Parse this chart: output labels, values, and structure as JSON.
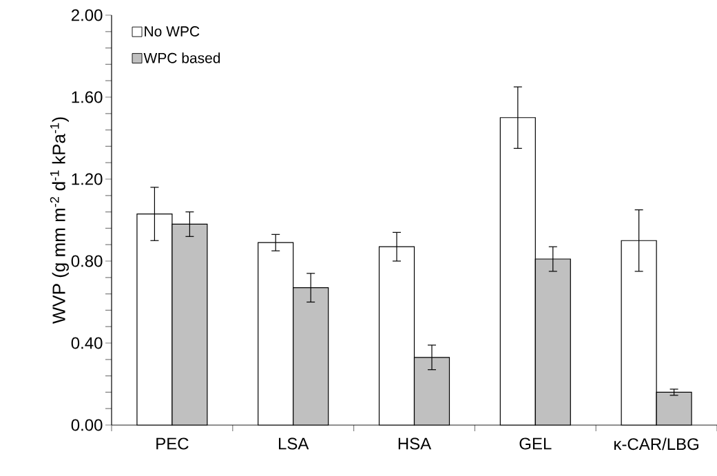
{
  "chart_data": {
    "type": "bar",
    "ylabel": "WVP (g mm m$^{-2}$ d$^{-1}$ kPa$^{-1}$)",
    "categories": [
      "PEC",
      "LSA",
      "HSA",
      "GEL",
      "κ-CAR/LBG"
    ],
    "series": [
      {
        "name": "No WPC",
        "color": "#ffffff",
        "values": [
          1.03,
          0.89,
          0.87,
          1.5,
          0.9
        ],
        "errors": [
          0.13,
          0.04,
          0.07,
          0.15,
          0.15
        ]
      },
      {
        "name": "WPC based",
        "color": "#c0c0c0",
        "values": [
          0.98,
          0.67,
          0.33,
          0.81,
          0.16
        ],
        "errors": [
          0.06,
          0.07,
          0.06,
          0.06,
          0.015
        ]
      }
    ],
    "ylim": [
      0,
      2
    ],
    "yticks": [
      {
        "value": 0,
        "label": "0.00"
      },
      {
        "value": 0.4,
        "label": "0.40"
      },
      {
        "value": 0.8,
        "label": "0.80"
      },
      {
        "value": 1.2,
        "label": "1.20"
      },
      {
        "value": 1.6,
        "label": "1.60"
      },
      {
        "value": 2,
        "label": "2.00"
      }
    ],
    "legend": "top left",
    "grid": false
  }
}
